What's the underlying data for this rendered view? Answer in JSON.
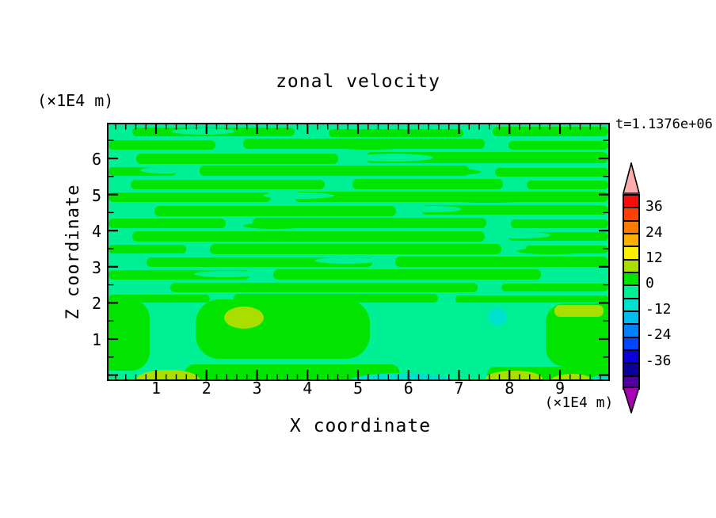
{
  "title": "zonal velocity",
  "time_label": "t=1.1376e+06",
  "x_axis": {
    "label": "X coordinate",
    "unit": "(×1E4 m)",
    "tick_values": [
      1,
      2,
      3,
      4,
      5,
      6,
      7,
      8,
      9
    ]
  },
  "y_axis": {
    "label": "Z coordinate",
    "unit": "(×1E4 m)",
    "tick_values": [
      6,
      5,
      4,
      3,
      2,
      1
    ]
  },
  "colorbar": {
    "labels": [
      "36",
      "24",
      "12",
      "0",
      "-12",
      "-24",
      "-36"
    ],
    "cells_top_to_bottom": [
      "#f80b0b",
      "#ff4000",
      "#ff7a00",
      "#ffaf00",
      "#fff000",
      "#aade00",
      "#00e400",
      "#00f096",
      "#00e1cd",
      "#00bdf0",
      "#0082ff",
      "#0046ff",
      "#0a00dc",
      "#0b0099",
      "#4f009e"
    ],
    "over_color": "#ffacac",
    "under_color": "#a800b4"
  },
  "plot_colors": {
    "positive_0_6": "#00e400",
    "negative_-6_0": "#00f096",
    "positive_6_12": "#aade00",
    "negative_-12_-6": "#00e1cd"
  },
  "chart_data": {
    "type": "heatmap",
    "title": "zonal velocity",
    "xlabel": "X coordinate",
    "ylabel": "Z coordinate",
    "x_unit": "(×1E4 m)",
    "y_unit": "(×1E4 m)",
    "x_range": [
      0,
      10
    ],
    "y_range": [
      0,
      7
    ],
    "time_annotation": "t=1.1376e+06",
    "contour_interval": 6,
    "colorbar_tick_labels": [
      36,
      24,
      12,
      0,
      -12,
      -24,
      -36
    ],
    "levels_top_to_bottom": [
      42,
      36,
      30,
      24,
      18,
      12,
      6,
      0,
      -6,
      -12,
      -18,
      -24,
      -30,
      -36,
      -42,
      -48
    ],
    "legend_position": "right",
    "grid": false,
    "field_description": "Filled-contour zonal velocity field. Upper region (z ≈ 2.2–7 ×1E4 m) contains thin alternating horizontal wavy streaks of weakly positive (0 to 6) and weakly negative (-6 to 0) velocity. Lower region (z < 2.2) shows broad cells of 0–6 velocity over a -6–0 background, with 6–12 maxima near (x≈2.8, z≈1.5), near the top of the right-hand cell (x≈9, z≈2), and along the bottom boundary near x≈2.5, x≈8, x≈9.3; weak -12 to -6 minima occur at (x≈7.7, z≈1.7) and along the bottom boundary near x≈5.3 and x≈9.8."
  }
}
